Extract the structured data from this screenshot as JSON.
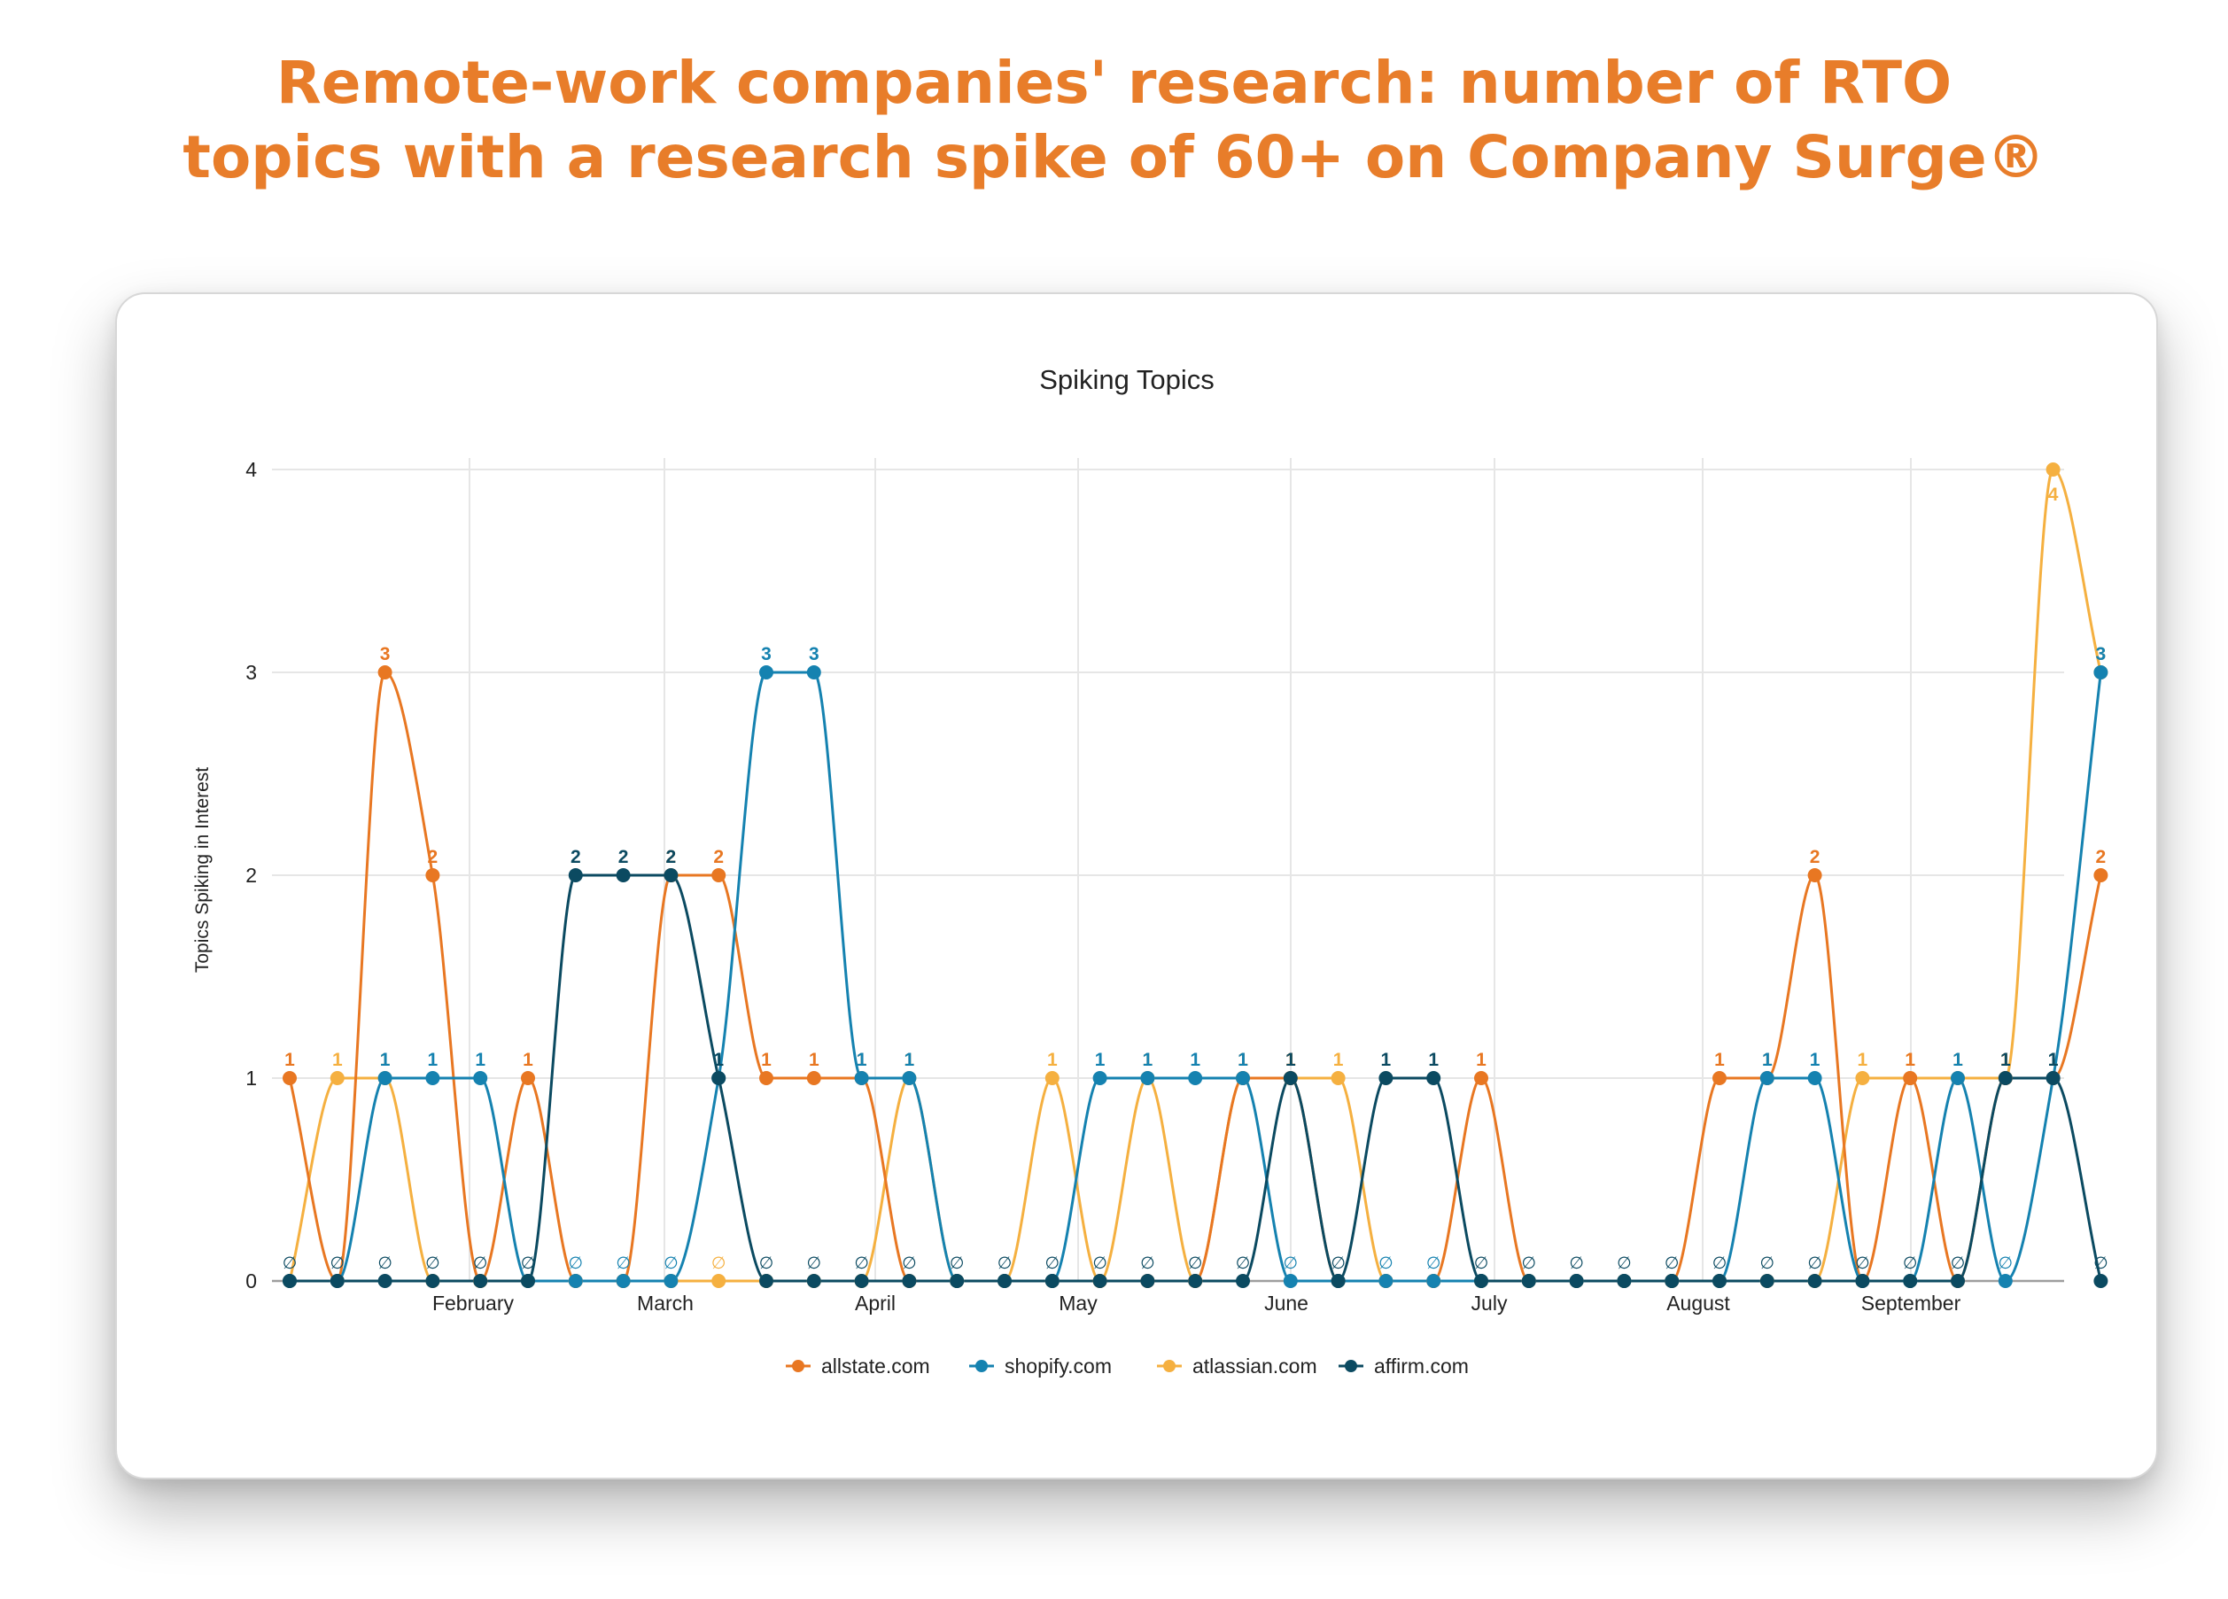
{
  "headline": {
    "line1": "Remote-work companies' research: number of RTO",
    "line2": "topics with a research spike of 60+ on Company Surge®"
  },
  "chart_data": {
    "type": "line",
    "title": "Spiking Topics",
    "xlabel": "",
    "ylabel": "Topics Spiking in Interest",
    "ylim": [
      0,
      4
    ],
    "yticks": [
      "0",
      "1",
      "2",
      "3",
      "4"
    ],
    "month_labels": [
      "February",
      "March",
      "April",
      "May",
      "June",
      "July",
      "August",
      "September"
    ],
    "zero_marker": "∅",
    "grid": true,
    "legend_position": "bottom",
    "series": [
      {
        "name": "allstate.com",
        "color": "#e87722",
        "values": [
          1,
          0,
          3,
          2,
          0,
          1,
          0,
          0,
          2,
          2,
          1,
          1,
          1,
          0,
          0,
          0,
          0,
          0,
          0,
          0,
          1,
          1,
          0,
          0,
          0,
          1,
          0,
          0,
          0,
          0,
          1,
          1,
          2,
          0,
          1,
          0,
          1,
          1,
          2
        ]
      },
      {
        "name": "shopify.com",
        "color": "#1582b0",
        "values": [
          0,
          0,
          1,
          1,
          1,
          0,
          0,
          0,
          0,
          1,
          3,
          3,
          1,
          1,
          0,
          0,
          0,
          1,
          1,
          1,
          1,
          0,
          0,
          0,
          0,
          0,
          0,
          0,
          0,
          0,
          0,
          1,
          1,
          0,
          0,
          1,
          0,
          1,
          3
        ]
      },
      {
        "name": "atlassian.com",
        "color": "#f5b040",
        "values": [
          0,
          1,
          1,
          0,
          0,
          0,
          0,
          0,
          0,
          0,
          0,
          0,
          0,
          1,
          0,
          0,
          1,
          0,
          1,
          0,
          1,
          1,
          1,
          0,
          0,
          0,
          0,
          0,
          0,
          0,
          0,
          0,
          0,
          1,
          1,
          1,
          1,
          4,
          3
        ]
      },
      {
        "name": "affirm.com",
        "color": "#0b4a61",
        "values": [
          0,
          0,
          0,
          0,
          0,
          0,
          2,
          2,
          2,
          1,
          0,
          0,
          0,
          0,
          0,
          0,
          0,
          0,
          0,
          0,
          0,
          1,
          0,
          1,
          1,
          0,
          0,
          0,
          0,
          0,
          0,
          0,
          0,
          0,
          0,
          0,
          1,
          1,
          0
        ]
      }
    ]
  }
}
